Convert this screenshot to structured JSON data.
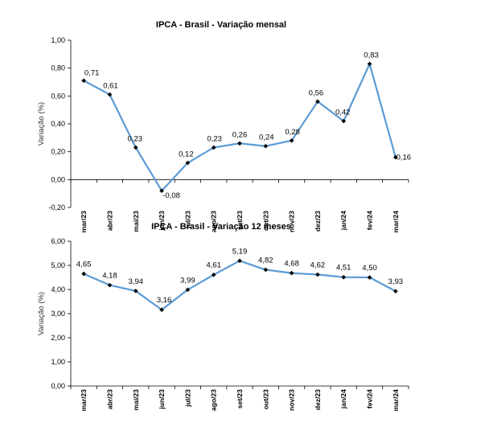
{
  "chart_data": [
    {
      "type": "line",
      "title": "IPCA - Brasil - Variação mensal",
      "ylabel": "Variação (%)",
      "xlabel": "",
      "ylim": [
        -0.2,
        1.0
      ],
      "yticks": [
        "-0,20",
        "0,00",
        "0,20",
        "0,40",
        "0,60",
        "0,80",
        "1,00"
      ],
      "categories": [
        "mar/23",
        "abr/23",
        "mai/23",
        "jun/23",
        "jul/23",
        "ago/23",
        "set/23",
        "out/23",
        "nov/23",
        "dez/23",
        "jan/24",
        "fev/24",
        "mar/24"
      ],
      "values": [
        0.71,
        0.61,
        0.23,
        -0.08,
        0.12,
        0.23,
        0.26,
        0.24,
        0.28,
        0.56,
        0.42,
        0.83,
        0.16
      ],
      "labels": [
        "0,71",
        "0,61",
        "0,23",
        "-0,08",
        "0,12",
        "0,23",
        "0,26",
        "0,24",
        "0,28",
        "0,56",
        "0,42",
        "0,83",
        "0,16"
      ],
      "line_color": "#5b9bd5",
      "grid": false
    },
    {
      "type": "line",
      "title": "IPCA - Brasil - Variação 12 meses",
      "ylabel": "Variação (%)",
      "xlabel": "",
      "ylim": [
        0,
        6
      ],
      "yticks": [
        "0,00",
        "1,00",
        "2,00",
        "3,00",
        "4,00",
        "5,00",
        "6,00"
      ],
      "categories": [
        "mar/23",
        "abr/23",
        "mai/23",
        "jun/23",
        "jul/23",
        "ago/23",
        "set/23",
        "out/23",
        "nov/23",
        "dez/23",
        "jan/24",
        "fev/24",
        "mar/24"
      ],
      "values": [
        4.65,
        4.18,
        3.94,
        3.16,
        3.99,
        4.61,
        5.19,
        4.82,
        4.68,
        4.62,
        4.51,
        4.5,
        3.93
      ],
      "labels": [
        "4,65",
        "4,18",
        "3,94",
        "3,16",
        "3,99",
        "4,61",
        "5,19",
        "4,82",
        "4,68",
        "4,62",
        "4,51",
        "4,50",
        "3,93"
      ],
      "line_color": "#5b9bd5",
      "grid": false
    }
  ]
}
